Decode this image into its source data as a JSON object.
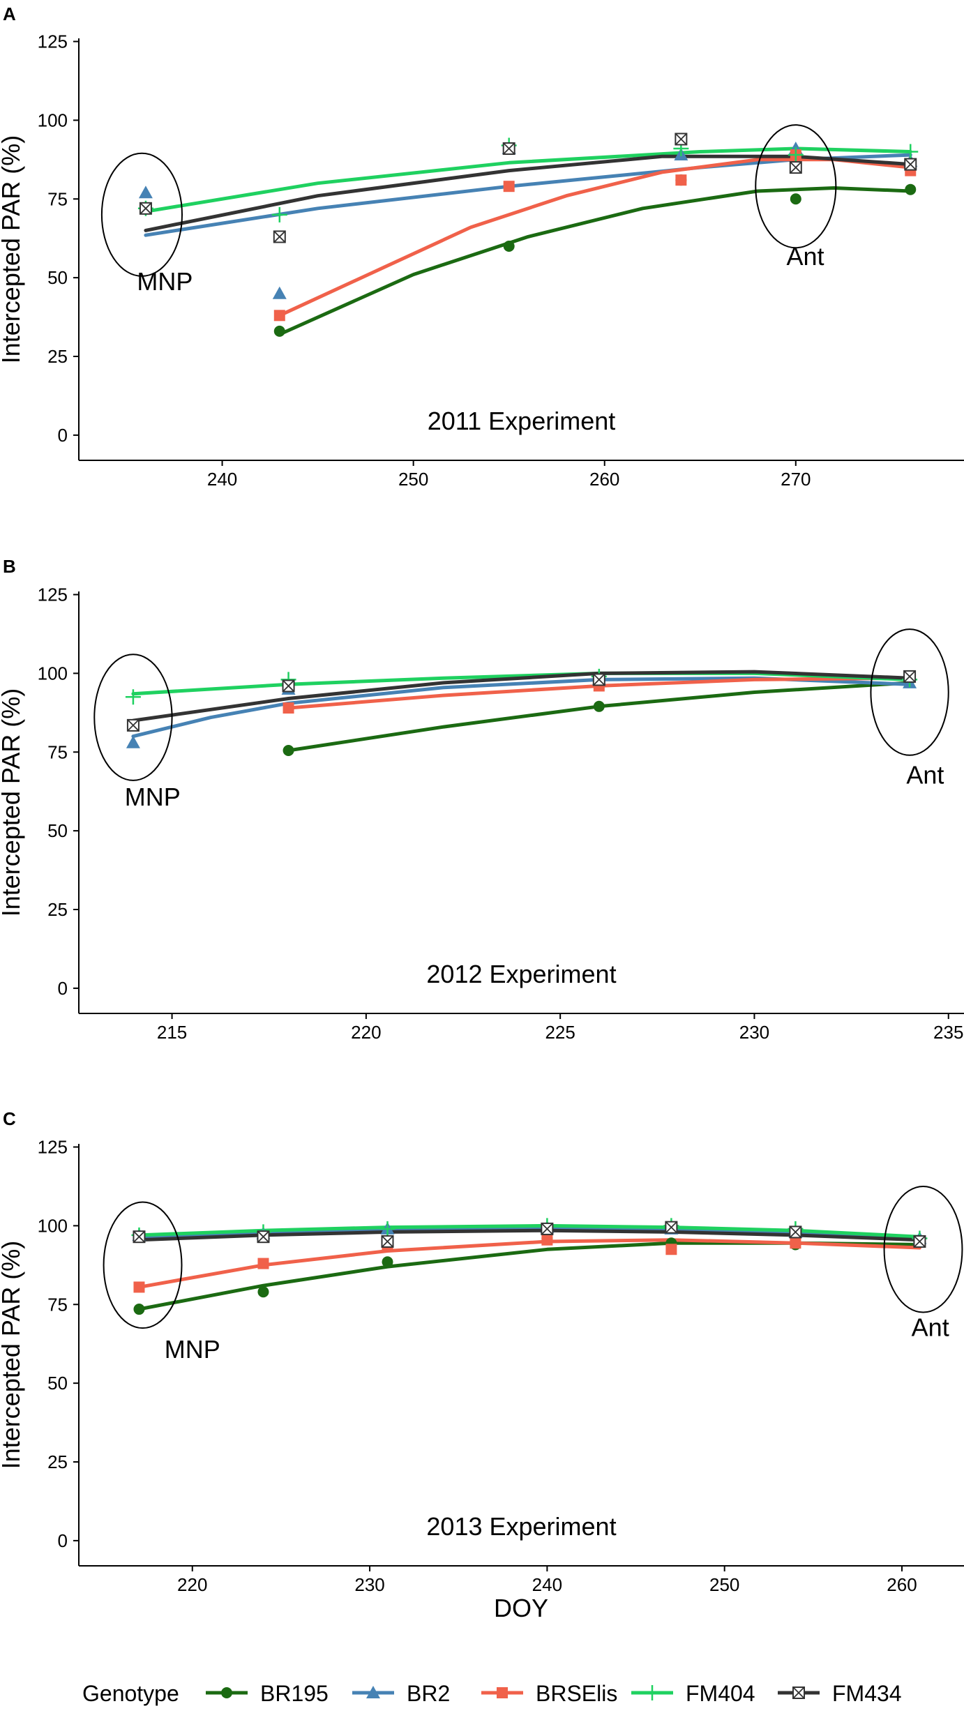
{
  "chart_data": {
    "type": "scatter",
    "figure_ylabel": "Intercepted PAR (%)",
    "figure_xlabel": "DOY",
    "legend": {
      "title": "Genotype",
      "placement": "bottom",
      "entries": [
        {
          "name": "BR195",
          "color": "#1b6a12",
          "marker": "circle"
        },
        {
          "name": "BR2",
          "color": "#4682b4",
          "marker": "triangle"
        },
        {
          "name": "BRSElis",
          "color": "#f0614a",
          "marker": "square"
        },
        {
          "name": "FM404",
          "color": "#1fd160",
          "marker": "plus"
        },
        {
          "name": "FM434",
          "color": "#333333",
          "marker": "boxx"
        }
      ]
    },
    "panels": [
      {
        "label": "A",
        "caption": "2011 Experiment",
        "ylabel": "Intercepted PAR (%)",
        "xlabel": "",
        "xlim": [
          232.5,
          278.8
        ],
        "ylim": [
          -8,
          126
        ],
        "xticks": [
          240,
          250,
          260,
          270
        ],
        "yticks": [
          0,
          25,
          50,
          75,
          100,
          125
        ],
        "annotations": [
          {
            "text": "MNP",
            "x": 237,
            "y": 46,
            "ellipse": {
              "cx": 235.8,
              "cy": 70,
              "rx": 2.1,
              "ry": 19.5
            }
          },
          {
            "text": "Ant",
            "x": 270.5,
            "y": 54,
            "ellipse": {
              "cx": 270,
              "cy": 79,
              "rx": 2.1,
              "ry": 19.5
            }
          }
        ],
        "series": [
          {
            "name": "BR195",
            "x": [
              243,
              255,
              264,
              270,
              276
            ],
            "y": [
              33,
              60,
              81,
              75,
              78
            ],
            "fit": [
              [
                243,
                32
              ],
              [
                250,
                51
              ],
              [
                256,
                63
              ],
              [
                262,
                72
              ],
              [
                268,
                77.5
              ],
              [
                272,
                78.5
              ],
              [
                276,
                77.5
              ]
            ]
          },
          {
            "name": "BR2",
            "x": [
              236,
              243,
              255,
              264,
              270,
              276
            ],
            "y": [
              77,
              45,
              91,
              89,
              91,
              87
            ],
            "fit": [
              [
                236,
                63.5
              ],
              [
                245,
                72
              ],
              [
                255,
                79
              ],
              [
                265,
                85
              ],
              [
                270,
                87.5
              ],
              [
                276,
                89
              ]
            ]
          },
          {
            "name": "BRSElis",
            "x": [
              243,
              255,
              264,
              270,
              276
            ],
            "y": [
              38,
              79,
              81,
              89,
              84
            ],
            "fit": [
              [
                243,
                38
              ],
              [
                248,
                52
              ],
              [
                253,
                66
              ],
              [
                258,
                76
              ],
              [
                263,
                83.5
              ],
              [
                268,
                87.5
              ],
              [
                272,
                87.5
              ],
              [
                276,
                85
              ]
            ]
          },
          {
            "name": "FM404",
            "x": [
              236,
              243,
              255,
              264,
              270,
              276
            ],
            "y": [
              72,
              70,
              92,
              91,
              89,
              90
            ],
            "fit": [
              [
                236,
                71
              ],
              [
                245,
                80
              ],
              [
                255,
                86.5
              ],
              [
                265,
                90
              ],
              [
                270,
                91
              ],
              [
                276,
                90
              ]
            ]
          },
          {
            "name": "FM434",
            "x": [
              236,
              243,
              255,
              264,
              270,
              276
            ],
            "y": [
              72,
              63,
              91,
              94,
              85,
              86
            ],
            "fit": [
              [
                236,
                65
              ],
              [
                245,
                76
              ],
              [
                255,
                84
              ],
              [
                263,
                88.5
              ],
              [
                270,
                88.5
              ],
              [
                276,
                86
              ]
            ]
          }
        ]
      },
      {
        "label": "B",
        "caption": "2012 Experiment",
        "ylabel": "Intercepted PAR (%)",
        "xlabel": "",
        "xlim": [
          212.6,
          235.4
        ],
        "ylim": [
          -8,
          126
        ],
        "xticks": [
          215,
          220,
          225,
          230,
          235
        ],
        "yticks": [
          0,
          25,
          50,
          75,
          100,
          125
        ],
        "annotations": [
          {
            "text": "MNP",
            "x": 214.5,
            "y": 58,
            "ellipse": {
              "cx": 214,
              "cy": 86,
              "rx": 1.0,
              "ry": 20
            }
          },
          {
            "text": "Ant",
            "x": 234.4,
            "y": 65,
            "ellipse": {
              "cx": 234,
              "cy": 94,
              "rx": 1.0,
              "ry": 20
            }
          }
        ],
        "series": [
          {
            "name": "BR195",
            "x": [
              218,
              226,
              234
            ],
            "y": [
              75.5,
              89.5,
              98
            ],
            "fit": [
              [
                218,
                75.5
              ],
              [
                222,
                83
              ],
              [
                226,
                89.5
              ],
              [
                230,
                94
              ],
              [
                234,
                97
              ]
            ]
          },
          {
            "name": "BR2",
            "x": [
              214,
              218,
              226,
              234
            ],
            "y": [
              78,
              95,
              98,
              97
            ],
            "fit": [
              [
                214,
                80
              ],
              [
                216,
                86
              ],
              [
                218,
                90.5
              ],
              [
                222,
                95.5
              ],
              [
                226,
                98
              ],
              [
                230,
                98.5
              ],
              [
                234,
                96.5
              ]
            ]
          },
          {
            "name": "BRSElis",
            "x": [
              218,
              226,
              234
            ],
            "y": [
              89,
              96,
              99
            ],
            "fit": [
              [
                218,
                89
              ],
              [
                222,
                93
              ],
              [
                226,
                96
              ],
              [
                230,
                98
              ],
              [
                234,
                98.5
              ]
            ]
          },
          {
            "name": "FM404",
            "x": [
              214,
              218,
              226,
              234
            ],
            "y": [
              92.5,
              98,
              99,
              98
            ],
            "fit": [
              [
                214,
                93.5
              ],
              [
                218,
                96.5
              ],
              [
                222,
                98.5
              ],
              [
                226,
                100
              ],
              [
                230,
                100
              ],
              [
                234,
                98
              ]
            ]
          },
          {
            "name": "FM434",
            "x": [
              214,
              218,
              226,
              234
            ],
            "y": [
              83.5,
              96,
              98,
              99
            ],
            "fit": [
              [
                214,
                85
              ],
              [
                218,
                92
              ],
              [
                222,
                97
              ],
              [
                226,
                100
              ],
              [
                230,
                100.5
              ],
              [
                234,
                98.5
              ]
            ]
          }
        ]
      },
      {
        "label": "C",
        "caption": "2013 Experiment",
        "ylabel": "Intercepted PAR (%)",
        "xlabel": "DOY",
        "xlim": [
          213.6,
          263.5
        ],
        "ylim": [
          -8,
          126
        ],
        "xticks": [
          220,
          230,
          240,
          250,
          260
        ],
        "yticks": [
          0,
          25,
          50,
          75,
          100,
          125
        ],
        "annotations": [
          {
            "text": "MNP",
            "x": 220,
            "y": 58,
            "ellipse": {
              "cx": 217.2,
              "cy": 87.5,
              "rx": 2.2,
              "ry": 20
            }
          },
          {
            "text": "Ant",
            "x": 261.6,
            "y": 65,
            "ellipse": {
              "cx": 261.2,
              "cy": 92.5,
              "rx": 2.2,
              "ry": 20
            }
          }
        ],
        "series": [
          {
            "name": "BR195",
            "x": [
              217,
              224,
              231,
              240,
              247,
              254,
              261
            ],
            "y": [
              73.5,
              79,
              88.5,
              96,
              94.5,
              94,
              95
            ],
            "fit": [
              [
                217,
                73.5
              ],
              [
                224,
                81
              ],
              [
                231,
                87
              ],
              [
                240,
                92.5
              ],
              [
                247,
                94.5
              ],
              [
                254,
                94.5
              ],
              [
                261,
                94
              ]
            ]
          },
          {
            "name": "BR2",
            "x": [
              217,
              224,
              231,
              240,
              247,
              254,
              261
            ],
            "y": [
              97,
              97.5,
              99,
              99.5,
              99,
              98,
              96
            ],
            "fit": [
              [
                217,
                96
              ],
              [
                224,
                97.5
              ],
              [
                231,
                98.5
              ],
              [
                240,
                99
              ],
              [
                247,
                98.5
              ],
              [
                254,
                97.5
              ],
              [
                261,
                96
              ]
            ]
          },
          {
            "name": "BRSElis",
            "x": [
              217,
              224,
              231,
              240,
              247,
              254,
              261
            ],
            "y": [
              80.5,
              88,
              93.5,
              95.5,
              92.5,
              94.5,
              95
            ],
            "fit": [
              [
                217,
                80.5
              ],
              [
                224,
                87.5
              ],
              [
                231,
                92
              ],
              [
                240,
                95
              ],
              [
                247,
                95.5
              ],
              [
                254,
                94.5
              ],
              [
                261,
                93
              ]
            ]
          },
          {
            "name": "FM404",
            "x": [
              217,
              224,
              231,
              240,
              247,
              254,
              261
            ],
            "y": [
              97,
              98,
              99,
              100,
              100,
              99,
              96
            ],
            "fit": [
              [
                217,
                97
              ],
              [
                224,
                98.5
              ],
              [
                231,
                99.5
              ],
              [
                240,
                100
              ],
              [
                247,
                99.5
              ],
              [
                254,
                98.5
              ],
              [
                261,
                96.5
              ]
            ]
          },
          {
            "name": "FM434",
            "x": [
              217,
              224,
              231,
              240,
              247,
              254,
              261
            ],
            "y": [
              96.5,
              96.5,
              95,
              99,
              99.5,
              98,
              95
            ],
            "fit": [
              [
                217,
                95.5
              ],
              [
                224,
                97
              ],
              [
                231,
                98
              ],
              [
                240,
                98.5
              ],
              [
                247,
                98
              ],
              [
                254,
                97
              ],
              [
                261,
                95.5
              ]
            ]
          }
        ]
      }
    ]
  }
}
